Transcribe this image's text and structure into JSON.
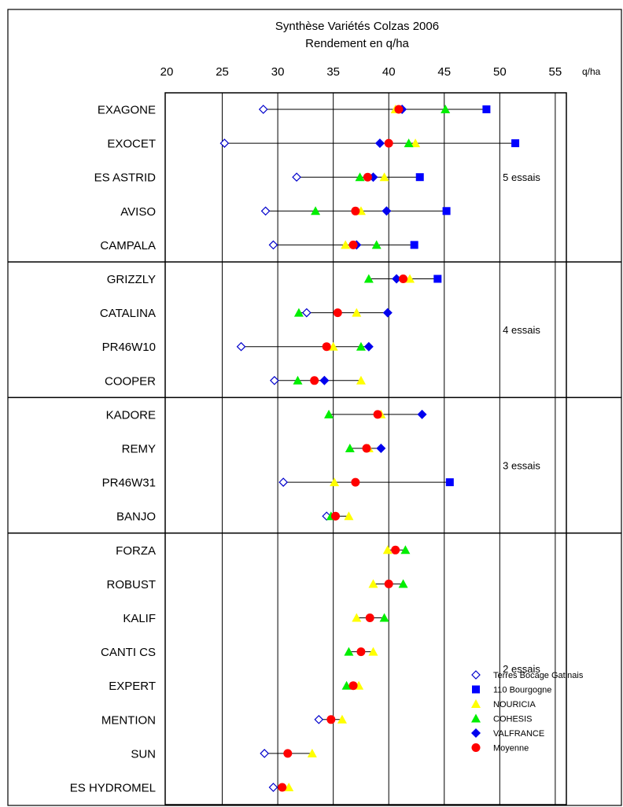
{
  "chart_data": {
    "type": "scatter",
    "title": "Synthèse Variétés Colzas 2006",
    "subtitle": "Rendement en q/ha",
    "unit_label": "q/ha",
    "x_ticks": [
      20,
      25,
      30,
      35,
      40,
      45,
      50,
      55
    ],
    "xlim": [
      20,
      56
    ],
    "grid": true,
    "legend_position": "bottom-right",
    "series": [
      {
        "key": "tbg",
        "name": "Terres Bocage Gatinais",
        "marker": "diamond-open",
        "color": "#0000cc"
      },
      {
        "key": "b110",
        "name": "110 Bourgogne",
        "marker": "square",
        "color": "#0000ff"
      },
      {
        "key": "nou",
        "name": "NOURICIA",
        "marker": "triangle-up",
        "color": "#ffff00"
      },
      {
        "key": "coh",
        "name": "COHESIS",
        "marker": "triangle-up",
        "color": "#00ee00"
      },
      {
        "key": "val",
        "name": "VALFRANCE",
        "marker": "diamond",
        "color": "#0000ee"
      },
      {
        "key": "moy",
        "name": "Moyenne",
        "marker": "circle",
        "color": "#ff0000"
      }
    ],
    "groups": [
      {
        "label": "5 essais",
        "varieties": [
          "EXAGONE",
          "EXOCET",
          "ES ASTRID",
          "AVISO",
          "CAMPALA"
        ]
      },
      {
        "label": "4 essais",
        "varieties": [
          "GRIZZLY",
          "CATALINA",
          "PR46W10",
          "COOPER"
        ]
      },
      {
        "label": "3 essais",
        "varieties": [
          "KADORE",
          "REMY",
          "PR46W31",
          "BANJO"
        ]
      },
      {
        "label": "2 essais",
        "varieties": [
          "FORZA",
          "ROBUST",
          "KALIF",
          "CANTI CS",
          "EXPERT",
          "MENTION",
          "SUN",
          "ES HYDROMEL"
        ]
      }
    ],
    "rows": [
      {
        "variety": "EXAGONE",
        "tbg": 28.7,
        "b110": 48.8,
        "nou": 40.6,
        "coh": 45.1,
        "val": 41.2,
        "moy": 40.9
      },
      {
        "variety": "EXOCET",
        "tbg": 25.2,
        "b110": 51.4,
        "nou": 42.4,
        "coh": 41.8,
        "val": 39.2,
        "moy": 40.0
      },
      {
        "variety": "ES ASTRID",
        "tbg": 31.7,
        "b110": 42.8,
        "nou": 39.6,
        "coh": 37.4,
        "val": 38.6,
        "moy": 38.1
      },
      {
        "variety": "AVISO",
        "tbg": 28.9,
        "b110": 45.2,
        "nou": 37.5,
        "coh": 33.4,
        "val": 39.8,
        "moy": 37.0
      },
      {
        "variety": "CAMPALA",
        "tbg": 29.6,
        "b110": 42.3,
        "nou": 36.1,
        "coh": 38.9,
        "val": 37.1,
        "moy": 36.8
      },
      {
        "variety": "GRIZZLY",
        "tbg": null,
        "b110": 44.4,
        "nou": 41.9,
        "coh": 38.2,
        "val": 40.7,
        "moy": 41.3
      },
      {
        "variety": "CATALINA",
        "tbg": 32.6,
        "b110": null,
        "nou": 37.1,
        "coh": 31.9,
        "val": 39.9,
        "moy": 35.4
      },
      {
        "variety": "PR46W10",
        "tbg": 26.7,
        "b110": null,
        "nou": 35.0,
        "coh": 37.5,
        "val": 38.2,
        "moy": 34.4
      },
      {
        "variety": "COOPER",
        "tbg": 29.7,
        "b110": null,
        "nou": 37.5,
        "coh": 31.8,
        "val": 34.2,
        "moy": 33.3
      },
      {
        "variety": "KADORE",
        "tbg": null,
        "b110": null,
        "nou": 39.3,
        "coh": 34.6,
        "val": 43.0,
        "moy": 39.0
      },
      {
        "variety": "REMY",
        "tbg": null,
        "b110": null,
        "nou": 38.2,
        "coh": 36.5,
        "val": 39.3,
        "moy": 38.0
      },
      {
        "variety": "PR46W31",
        "tbg": 30.5,
        "b110": 45.5,
        "nou": 35.1,
        "coh": null,
        "val": null,
        "moy": 37.0
      },
      {
        "variety": "BANJO",
        "tbg": 34.4,
        "b110": null,
        "nou": 36.4,
        "coh": 34.8,
        "val": null,
        "moy": 35.2
      },
      {
        "variety": "FORZA",
        "tbg": null,
        "b110": null,
        "nou": 39.9,
        "coh": 41.5,
        "val": null,
        "moy": 40.6
      },
      {
        "variety": "ROBUST",
        "tbg": null,
        "b110": null,
        "nou": 38.6,
        "coh": 41.3,
        "val": null,
        "moy": 40.0
      },
      {
        "variety": "KALIF",
        "tbg": null,
        "b110": null,
        "nou": 37.1,
        "coh": 39.6,
        "val": null,
        "moy": 38.3
      },
      {
        "variety": "CANTI CS",
        "tbg": null,
        "b110": null,
        "nou": 38.6,
        "coh": 36.4,
        "val": null,
        "moy": 37.5
      },
      {
        "variety": "EXPERT",
        "tbg": null,
        "b110": null,
        "nou": 37.3,
        "coh": 36.2,
        "val": null,
        "moy": 36.8
      },
      {
        "variety": "MENTION",
        "tbg": 33.7,
        "b110": null,
        "nou": 35.8,
        "coh": null,
        "val": null,
        "moy": 34.8
      },
      {
        "variety": "SUN",
        "tbg": 28.8,
        "b110": null,
        "nou": 33.1,
        "coh": null,
        "val": null,
        "moy": 30.9
      },
      {
        "variety": "ES HYDROMEL",
        "tbg": 29.6,
        "b110": null,
        "nou": 31.0,
        "coh": null,
        "val": null,
        "moy": 30.4
      }
    ]
  }
}
